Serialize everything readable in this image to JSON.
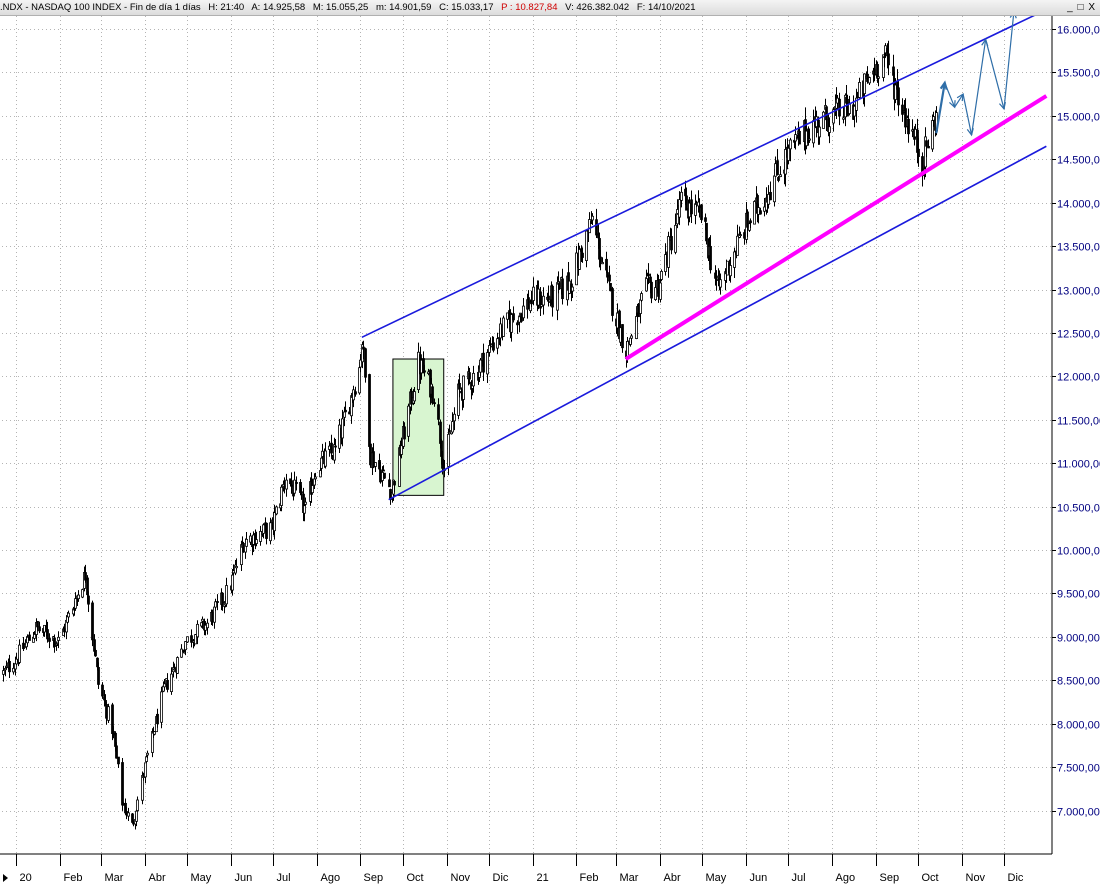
{
  "header": {
    "symbol": ".NDX - NASDAQ 100 INDEX - Fin de día 1 días",
    "hour": "H: 21:40",
    "open": "A: 14.925,58",
    "high": "M: 15.055,25",
    "low": "m: 14.901,59",
    "close": "C: 15.033,17",
    "p": "P : 10.827,84",
    "volume": "V: 426.382.042",
    "date": "F: 14/10/2021"
  },
  "window_controls": {
    "minimize": "_",
    "maximize": "□",
    "close": "X"
  },
  "colors": {
    "channel": "#1a1adc",
    "support": "#ff00ff",
    "projection": "#2f6ea8",
    "box_fill": "#d8f5d0",
    "axis_text": "#000080",
    "grid": "#b4b4b4",
    "candles": "#000000",
    "header_red": "#d00000"
  },
  "chart_data": {
    "type": "candlestick",
    "title": ".NDX - NASDAQ 100 INDEX",
    "y_axis_side": "right",
    "ylim": [
      6500,
      16150
    ],
    "y_ticks": [
      "16.000,00",
      "15.500,00",
      "15.000,00",
      "14.500,00",
      "14.000,00",
      "13.500,00",
      "13.000,00",
      "12.500,00",
      "12.000,00",
      "11.500,00",
      "11.000,00",
      "10.500,00",
      "10.000,00",
      "9.500,00",
      "9.000,00",
      "8.500,00",
      "8.000,00",
      "7.500,00",
      "7.000,00"
    ],
    "y_tick_values": [
      16000,
      15500,
      15000,
      14500,
      14000,
      13500,
      13000,
      12500,
      12000,
      11500,
      11000,
      10500,
      10000,
      9500,
      9000,
      8500,
      8000,
      7500,
      7000
    ],
    "x_labels": [
      "20",
      "Feb",
      "Mar",
      "Abr",
      "May",
      "Jun",
      "Jul",
      "Ago",
      "Sep",
      "Oct",
      "Nov",
      "Dic",
      "21",
      "Feb",
      "Mar",
      "Abr",
      "May",
      "Jun",
      "Jul",
      "Ago",
      "Sep",
      "Oct",
      "Nov",
      "Dic"
    ],
    "x_label_dates": [
      "2020-01-01",
      "2020-02-01",
      "2020-03-01",
      "2020-04-01",
      "2020-05-01",
      "2020-06-01",
      "2020-07-01",
      "2020-08-01",
      "2020-09-01",
      "2020-10-01",
      "2020-11-01",
      "2020-12-01",
      "2021-01-01",
      "2021-02-01",
      "2021-03-01",
      "2021-04-01",
      "2021-05-01",
      "2021-06-01",
      "2021-07-01",
      "2021-08-01",
      "2021-09-01",
      "2021-10-01",
      "2021-11-01",
      "2021-12-01"
    ],
    "grid": true,
    "price_path": [
      [
        "2019-12-23",
        8580
      ],
      [
        "2020-01-02",
        8780
      ],
      [
        "2020-01-15",
        9100
      ],
      [
        "2020-01-31",
        8950
      ],
      [
        "2020-02-19",
        9720
      ],
      [
        "2020-02-28",
        8460
      ],
      [
        "2020-03-09",
        7950
      ],
      [
        "2020-03-16",
        7100
      ],
      [
        "2020-03-23",
        6820
      ],
      [
        "2020-04-01",
        7500
      ],
      [
        "2020-04-15",
        8400
      ],
      [
        "2020-04-30",
        8950
      ],
      [
        "2020-05-15",
        9150
      ],
      [
        "2020-05-31",
        9550
      ],
      [
        "2020-06-10",
        10100
      ],
      [
        "2020-06-30",
        10250
      ],
      [
        "2020-07-10",
        10850
      ],
      [
        "2020-07-24",
        10450
      ],
      [
        "2020-07-31",
        10950
      ],
      [
        "2020-08-14",
        11150
      ],
      [
        "2020-08-31",
        12100
      ],
      [
        "2020-09-02",
        12420
      ],
      [
        "2020-09-08",
        11100
      ],
      [
        "2020-09-23",
        10680
      ],
      [
        "2020-10-01",
        11300
      ],
      [
        "2020-10-12",
        12150
      ],
      [
        "2020-10-23",
        11800
      ],
      [
        "2020-10-30",
        10950
      ],
      [
        "2020-11-09",
        11800
      ],
      [
        "2020-11-20",
        12000
      ],
      [
        "2020-12-08",
        12500
      ],
      [
        "2020-12-31",
        12880
      ],
      [
        "2021-01-15",
        12900
      ],
      [
        "2021-01-28",
        13100
      ],
      [
        "2021-02-12",
        13800
      ],
      [
        "2021-02-25",
        12900
      ],
      [
        "2021-03-08",
        12300
      ],
      [
        "2021-03-22",
        13000
      ],
      [
        "2021-03-31",
        13050
      ],
      [
        "2021-04-16",
        14000
      ],
      [
        "2021-04-30",
        13850
      ],
      [
        "2021-05-12",
        13000
      ],
      [
        "2021-05-31",
        13700
      ],
      [
        "2021-06-15",
        14100
      ],
      [
        "2021-06-30",
        14550
      ],
      [
        "2021-07-15",
        14850
      ],
      [
        "2021-07-30",
        15000
      ],
      [
        "2021-08-16",
        15100
      ],
      [
        "2021-08-31",
        15550
      ],
      [
        "2021-09-07",
        15690
      ],
      [
        "2021-09-20",
        15100
      ],
      [
        "2021-10-04",
        14480
      ],
      [
        "2021-10-14",
        15033
      ]
    ],
    "annotations": [
      {
        "kind": "line",
        "name": "channel-upper",
        "from": [
          "2020-09-02",
          12450
        ],
        "to": [
          "2021-12-28",
          16200
        ]
      },
      {
        "kind": "line",
        "name": "channel-lower",
        "from": [
          "2020-09-21",
          10580
        ],
        "to": [
          "2021-12-31",
          14650
        ]
      },
      {
        "kind": "line",
        "name": "support-line",
        "from": [
          "2021-03-08",
          12200
        ],
        "to": [
          "2021-12-31",
          15230
        ]
      },
      {
        "kind": "rect",
        "name": "consolidation-box",
        "x": [
          "2020-09-24",
          "2020-10-30"
        ],
        "y": [
          10630,
          12200
        ]
      },
      {
        "kind": "projection",
        "name": "projected-path",
        "points": [
          [
            "2021-10-14",
            14800
          ],
          [
            "2021-10-20",
            15380
          ],
          [
            "2021-10-27",
            15100
          ],
          [
            "2021-11-02",
            15250
          ],
          [
            "2021-11-08",
            14780
          ],
          [
            "2021-11-18",
            15880
          ],
          [
            "2021-12-01",
            15080
          ],
          [
            "2021-12-08",
            16200
          ]
        ]
      }
    ]
  }
}
